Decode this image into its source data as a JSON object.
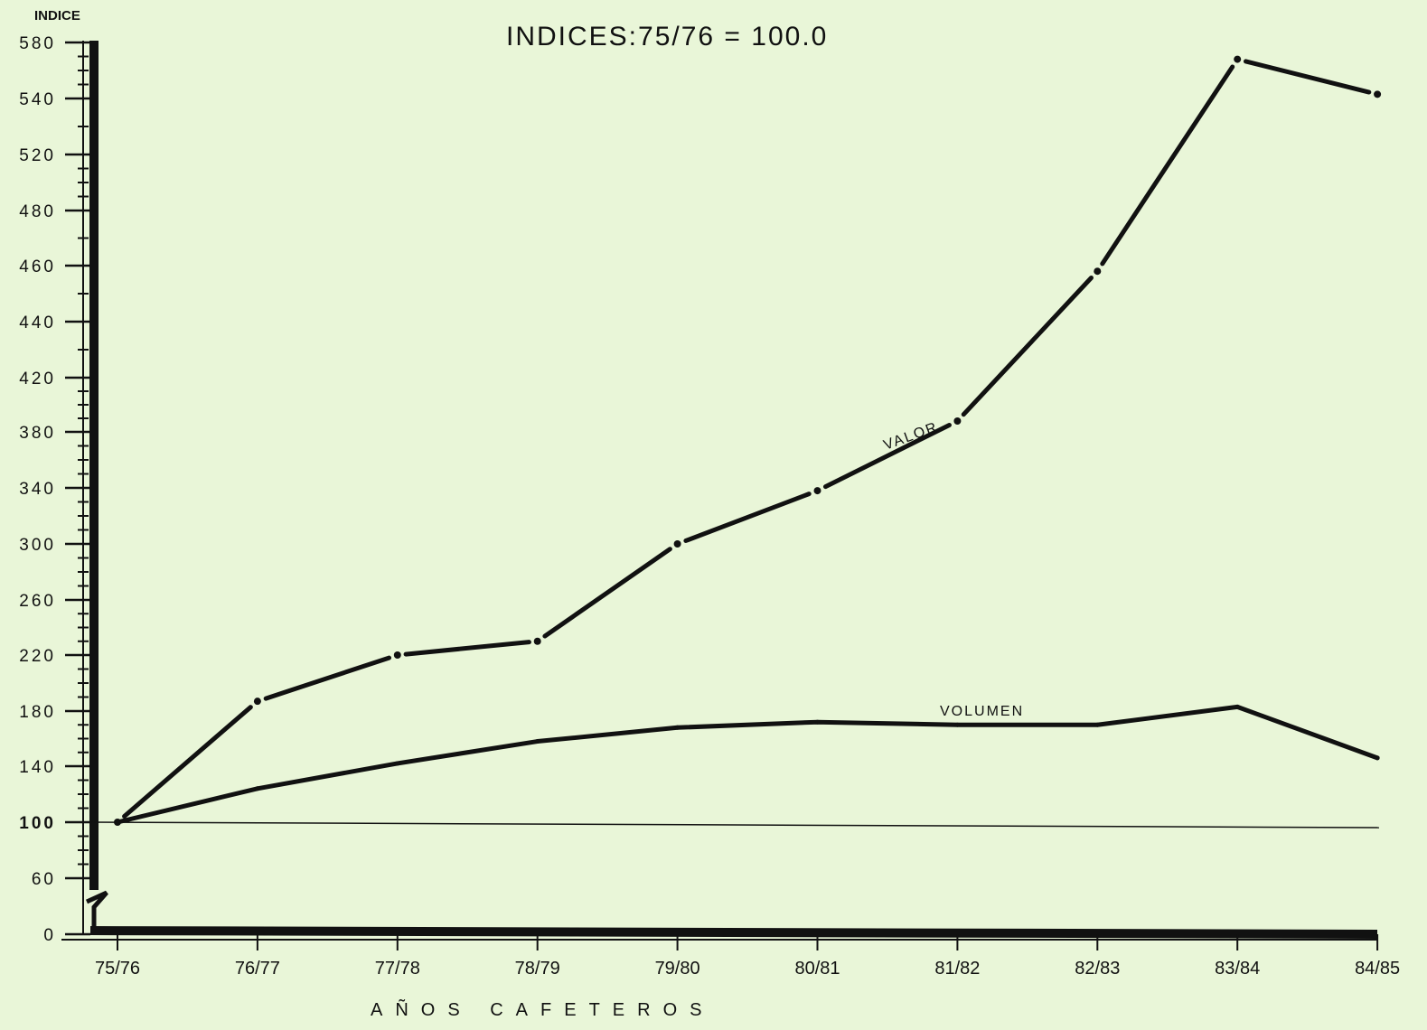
{
  "chart_data": {
    "type": "line",
    "title": "INDICES:75/76 = 100.0",
    "ylabel": "INDICE",
    "xlabel": "AÑOS CAFETEROS",
    "categories": [
      "75/76",
      "76/77",
      "77/78",
      "78/79",
      "79/80",
      "80/81",
      "81/82",
      "82/83",
      "83/84",
      "84/85"
    ],
    "y_ticks": [
      "0",
      "60",
      "100",
      "140",
      "180",
      "220",
      "260",
      "300",
      "340",
      "380",
      "420",
      "440",
      "460",
      "480",
      "520",
      "540",
      "580"
    ],
    "y_axis_break": "between 0 and 60",
    "series": [
      {
        "name": "VALOR",
        "values": [
          100,
          187,
          220,
          230,
          300,
          338,
          388,
          458,
          568,
          543
        ]
      },
      {
        "name": "VOLUMEN",
        "values": [
          100,
          124,
          142,
          158,
          168,
          172,
          170,
          170,
          183,
          146
        ]
      }
    ],
    "reference_line": {
      "y": 100
    },
    "colors": {
      "background": "#e9f6d8",
      "ink": "#111111"
    }
  }
}
